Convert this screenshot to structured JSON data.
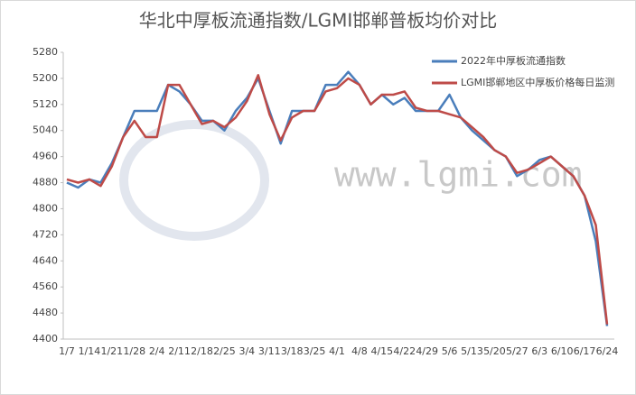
{
  "chart_data": {
    "type": "line",
    "title": "华北中厚板流通指数/LGMI邯郸普板均价对比",
    "watermark": "www.lgmi.com",
    "categories": [
      "1/7",
      null,
      "1/14",
      null,
      "1/21",
      null,
      "1/28",
      null,
      "2/4",
      null,
      "2/11",
      null,
      "2/18",
      null,
      "2/25",
      null,
      "3/4",
      null,
      "3/11",
      null,
      "3/18",
      null,
      "3/25",
      null,
      "4/1",
      null,
      "4/8",
      null,
      "4/15",
      null,
      "4/22",
      null,
      "4/29",
      null,
      "5/6",
      null,
      "5/13",
      null,
      "5/20",
      null,
      "5/27",
      null,
      "6/3",
      null,
      "6/10",
      null,
      "6/17",
      null,
      "6/24"
    ],
    "series": [
      {
        "name": "2022年中厚板流通指数",
        "color": "#4a7ebb",
        "values": [
          4880,
          4865,
          4890,
          4880,
          4940,
          5020,
          5100,
          5100,
          5100,
          5180,
          5160,
          5120,
          5070,
          5070,
          5040,
          5100,
          5140,
          5200,
          5100,
          5000,
          5100,
          5100,
          5100,
          5180,
          5180,
          5220,
          5180,
          5120,
          5150,
          5120,
          5140,
          5100,
          5100,
          5100,
          5150,
          5080,
          5040,
          5010,
          4980,
          4960,
          4900,
          4920,
          4950,
          4960,
          4930,
          4900,
          4840,
          4700,
          4440
        ]
      },
      {
        "name": "LGMI邯郸地区中厚板价格每日监测",
        "color": "#be4b48",
        "values": [
          4890,
          4880,
          4890,
          4870,
          4930,
          5020,
          5070,
          5020,
          5020,
          5180,
          5180,
          5120,
          5060,
          5070,
          5050,
          5080,
          5130,
          5210,
          5090,
          5010,
          5080,
          5100,
          5100,
          5160,
          5170,
          5200,
          5180,
          5120,
          5150,
          5150,
          5160,
          5110,
          5100,
          5100,
          5090,
          5080,
          5050,
          5020,
          4980,
          4960,
          4910,
          4920,
          4940,
          4960,
          4930,
          4900,
          4840,
          4750,
          4445
        ]
      }
    ],
    "ylim": [
      4400,
      5280
    ],
    "yticks": [
      4400,
      4480,
      4560,
      4640,
      4720,
      4800,
      4880,
      4960,
      5040,
      5120,
      5200,
      5280
    ],
    "grid": false
  }
}
